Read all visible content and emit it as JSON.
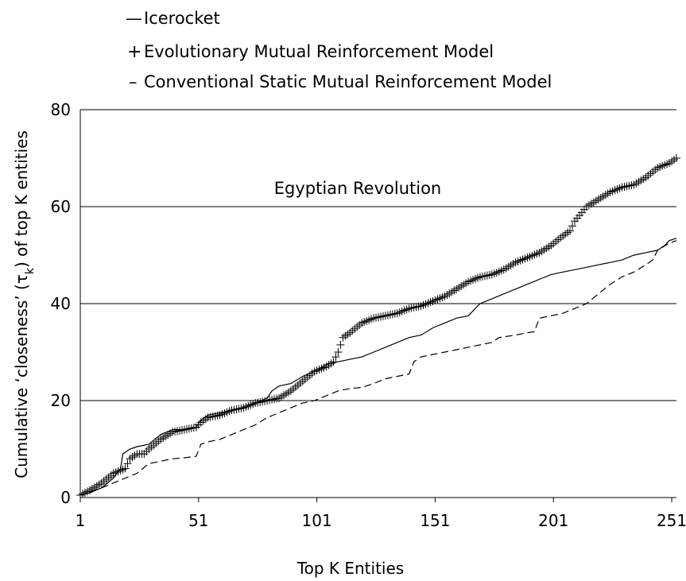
{
  "chart_data": {
    "type": "line",
    "title": "",
    "annotation": "Egyptian Revolution",
    "xlabel": "Top K Entities",
    "ylabel_main": "Cumulative ‘closeness’ (τ",
    "ylabel_sub": "k",
    "ylabel_tail": ") of top K entities",
    "xlim": [
      1,
      253
    ],
    "ylim": [
      0,
      80
    ],
    "x_ticks": [
      1,
      51,
      101,
      151,
      201,
      251
    ],
    "y_ticks": [
      0,
      20,
      40,
      60,
      80
    ],
    "grid": "horizontal",
    "legend_position": "top-left",
    "series": [
      {
        "name": "Icerocket",
        "marker": "—",
        "style": "solid",
        "points": [
          [
            1,
            0.5
          ],
          [
            5,
            1
          ],
          [
            10,
            2
          ],
          [
            15,
            4
          ],
          [
            18,
            6
          ],
          [
            19,
            9
          ],
          [
            22,
            10
          ],
          [
            25,
            10.5
          ],
          [
            30,
            11
          ],
          [
            35,
            13
          ],
          [
            40,
            14
          ],
          [
            45,
            14
          ],
          [
            50,
            14.5
          ],
          [
            52,
            16
          ],
          [
            55,
            17
          ],
          [
            60,
            17.5
          ],
          [
            65,
            18
          ],
          [
            70,
            18.5
          ],
          [
            75,
            19.5
          ],
          [
            80,
            20.5
          ],
          [
            82,
            22
          ],
          [
            85,
            23
          ],
          [
            90,
            23.5
          ],
          [
            95,
            25
          ],
          [
            100,
            26
          ],
          [
            105,
            27.5
          ],
          [
            110,
            28
          ],
          [
            115,
            28.5
          ],
          [
            120,
            29
          ],
          [
            125,
            30
          ],
          [
            130,
            31
          ],
          [
            135,
            32
          ],
          [
            140,
            33
          ],
          [
            145,
            33.5
          ],
          [
            150,
            35
          ],
          [
            155,
            36
          ],
          [
            160,
            37
          ],
          [
            165,
            37.5
          ],
          [
            168,
            39
          ],
          [
            170,
            40
          ],
          [
            175,
            41
          ],
          [
            180,
            42
          ],
          [
            185,
            43
          ],
          [
            190,
            44
          ],
          [
            195,
            45
          ],
          [
            200,
            46
          ],
          [
            205,
            46.5
          ],
          [
            210,
            47
          ],
          [
            215,
            47.5
          ],
          [
            220,
            48
          ],
          [
            225,
            48.5
          ],
          [
            230,
            49
          ],
          [
            235,
            50
          ],
          [
            240,
            50.5
          ],
          [
            245,
            51
          ],
          [
            248,
            52
          ],
          [
            250,
            53
          ],
          [
            253,
            53.5
          ]
        ]
      },
      {
        "name": "Evolutionary Mutual Reinforcement Model",
        "marker": "+",
        "style": "markers",
        "points": [
          [
            1,
            0.5
          ],
          [
            5,
            1.5
          ],
          [
            10,
            3
          ],
          [
            15,
            5
          ],
          [
            20,
            6
          ],
          [
            22,
            8
          ],
          [
            25,
            9
          ],
          [
            28,
            9
          ],
          [
            30,
            10
          ],
          [
            35,
            12
          ],
          [
            40,
            13.5
          ],
          [
            45,
            14
          ],
          [
            50,
            14.5
          ],
          [
            52,
            15.5
          ],
          [
            55,
            16.5
          ],
          [
            60,
            17
          ],
          [
            65,
            18
          ],
          [
            70,
            18.5
          ],
          [
            75,
            19.5
          ],
          [
            80,
            20
          ],
          [
            85,
            20.5
          ],
          [
            90,
            22
          ],
          [
            95,
            24
          ],
          [
            100,
            26
          ],
          [
            105,
            27
          ],
          [
            108,
            28
          ],
          [
            110,
            30
          ],
          [
            112,
            33
          ],
          [
            115,
            34
          ],
          [
            120,
            36
          ],
          [
            125,
            37
          ],
          [
            130,
            37.5
          ],
          [
            135,
            38
          ],
          [
            140,
            39
          ],
          [
            145,
            39.5
          ],
          [
            150,
            40.5
          ],
          [
            155,
            41.5
          ],
          [
            160,
            43
          ],
          [
            165,
            44.5
          ],
          [
            170,
            45.5
          ],
          [
            175,
            46
          ],
          [
            180,
            47
          ],
          [
            185,
            48.5
          ],
          [
            190,
            49.5
          ],
          [
            195,
            50.5
          ],
          [
            200,
            52
          ],
          [
            205,
            54
          ],
          [
            208,
            55
          ],
          [
            210,
            57
          ],
          [
            215,
            60
          ],
          [
            220,
            61.5
          ],
          [
            225,
            63
          ],
          [
            230,
            64
          ],
          [
            235,
            64.5
          ],
          [
            240,
            66
          ],
          [
            245,
            68
          ],
          [
            250,
            69
          ],
          [
            253,
            70
          ]
        ]
      },
      {
        "name": "Conventional Static Mutual Reinforcement Model",
        "marker": "–",
        "style": "dashed",
        "points": [
          [
            1,
            0.5
          ],
          [
            10,
            2
          ],
          [
            20,
            4
          ],
          [
            25,
            5
          ],
          [
            30,
            7
          ],
          [
            35,
            7.5
          ],
          [
            40,
            8
          ],
          [
            45,
            8.2
          ],
          [
            50,
            8.5
          ],
          [
            52,
            11
          ],
          [
            55,
            11.5
          ],
          [
            60,
            12
          ],
          [
            65,
            13
          ],
          [
            70,
            14
          ],
          [
            75,
            15
          ],
          [
            80,
            16.5
          ],
          [
            85,
            17.5
          ],
          [
            90,
            18.5
          ],
          [
            95,
            19.5
          ],
          [
            100,
            20
          ],
          [
            105,
            21
          ],
          [
            110,
            22
          ],
          [
            115,
            22.5
          ],
          [
            120,
            22.7
          ],
          [
            125,
            23.5
          ],
          [
            130,
            24.5
          ],
          [
            135,
            25
          ],
          [
            140,
            25.5
          ],
          [
            142,
            28
          ],
          [
            145,
            29
          ],
          [
            150,
            29.5
          ],
          [
            155,
            30
          ],
          [
            160,
            30.5
          ],
          [
            165,
            31
          ],
          [
            170,
            31.5
          ],
          [
            175,
            32
          ],
          [
            178,
            33
          ],
          [
            185,
            33.5
          ],
          [
            190,
            34
          ],
          [
            193,
            34.2
          ],
          [
            195,
            37
          ],
          [
            200,
            37.5
          ],
          [
            205,
            38
          ],
          [
            210,
            39
          ],
          [
            215,
            40
          ],
          [
            220,
            42
          ],
          [
            225,
            44
          ],
          [
            230,
            45.5
          ],
          [
            235,
            46.5
          ],
          [
            240,
            48
          ],
          [
            243,
            49
          ],
          [
            245,
            51
          ],
          [
            250,
            52.5
          ],
          [
            253,
            53
          ]
        ]
      }
    ]
  }
}
